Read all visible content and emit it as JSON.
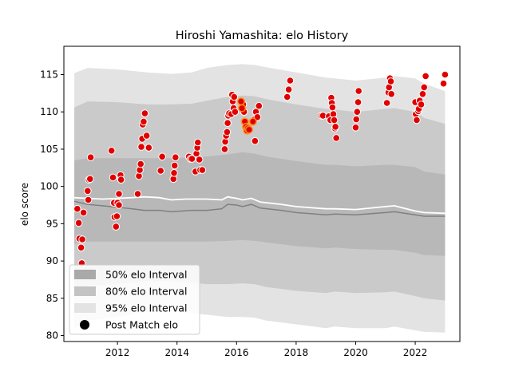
{
  "chart_data": {
    "type": "scatter",
    "title": "Hiroshi Yamashita: elo History",
    "xlabel": "",
    "ylabel": "elo score",
    "xlim": [
      2010.2,
      2023.5
    ],
    "ylim": [
      79.2,
      118.8
    ],
    "x_ticks": [
      2012,
      2014,
      2016,
      2018,
      2020,
      2022
    ],
    "y_ticks": [
      80,
      85,
      90,
      95,
      100,
      105,
      110,
      115
    ],
    "legend_position": "lower-left",
    "legend": [
      {
        "label": "50% elo Interval",
        "color": "#a9a9a9"
      },
      {
        "label": "80% elo Interval",
        "color": "#c3c3c3"
      },
      {
        "label": "95% elo Interval",
        "color": "#e3e3e3"
      },
      {
        "label": "Post Match elo",
        "color": "#000000"
      }
    ],
    "colors": {
      "band95": "#e3e3e3",
      "band80": "#cacaca",
      "band50": "#b8b8b8",
      "median_line": "#808080",
      "mean_line": "#ffffff",
      "point_fill": "#e00000",
      "point_highlight": "#ff8c1a",
      "point_edge": "#ffffff"
    },
    "band_x": [
      2010.55,
      2011.0,
      2012.0,
      2013.0,
      2013.8,
      2014.5,
      2015.0,
      2015.7,
      2016.2,
      2016.6,
      2017.0,
      2018.0,
      2019.0,
      2019.3,
      2020.0,
      2021.0,
      2021.3,
      2022.0,
      2022.3,
      2023.0
    ],
    "band95_upper": [
      115.2,
      115.9,
      115.7,
      115.3,
      115.1,
      115.3,
      115.9,
      116.3,
      116.4,
      116.3,
      116.0,
      115.3,
      114.6,
      114.5,
      114.2,
      114.6,
      114.8,
      114.5,
      113.8,
      112.8
    ],
    "band95_lower": [
      81.0,
      82.0,
      82.5,
      83.2,
      83.3,
      83.0,
      82.8,
      82.5,
      82.5,
      82.4,
      82.0,
      81.5,
      81.0,
      81.2,
      81.0,
      81.0,
      81.2,
      80.7,
      80.5,
      80.4
    ],
    "band80_upper": [
      110.6,
      111.4,
      111.3,
      111.0,
      111.0,
      111.1,
      111.5,
      112.0,
      112.2,
      112.1,
      111.7,
      111.0,
      110.4,
      110.3,
      110.0,
      110.4,
      110.5,
      110.0,
      109.2,
      108.4
    ],
    "band80_lower": [
      86.0,
      86.7,
      86.9,
      87.3,
      87.3,
      87.1,
      86.9,
      86.9,
      87.0,
      86.9,
      86.5,
      86.0,
      85.7,
      85.9,
      85.7,
      85.8,
      85.9,
      85.3,
      85.0,
      84.7
    ],
    "band50_upper": [
      103.5,
      103.8,
      103.8,
      103.8,
      103.8,
      103.9,
      104.0,
      104.3,
      104.6,
      104.4,
      104.0,
      103.4,
      102.9,
      102.9,
      102.7,
      102.9,
      102.9,
      102.6,
      102.0,
      101.6
    ],
    "band50_lower": [
      92.3,
      92.6,
      92.6,
      92.6,
      92.6,
      92.6,
      92.6,
      92.7,
      92.8,
      92.7,
      92.5,
      92.0,
      91.7,
      91.8,
      91.6,
      91.5,
      91.5,
      91.1,
      90.8,
      90.7
    ],
    "median_line": [
      [
        2010.55,
        98.0
      ],
      [
        2011.0,
        97.6
      ],
      [
        2011.5,
        97.4
      ],
      [
        2012.0,
        97.2
      ],
      [
        2012.5,
        97.0
      ],
      [
        2012.9,
        96.8
      ],
      [
        2013.4,
        96.8
      ],
      [
        2013.8,
        96.6
      ],
      [
        2014.5,
        96.8
      ],
      [
        2015.0,
        96.8
      ],
      [
        2015.5,
        97.0
      ],
      [
        2015.7,
        97.6
      ],
      [
        2016.0,
        97.5
      ],
      [
        2016.2,
        97.3
      ],
      [
        2016.5,
        97.6
      ],
      [
        2016.8,
        97.1
      ],
      [
        2017.5,
        96.8
      ],
      [
        2018.0,
        96.5
      ],
      [
        2019.0,
        96.2
      ],
      [
        2019.3,
        96.3
      ],
      [
        2020.0,
        96.2
      ],
      [
        2021.0,
        96.5
      ],
      [
        2021.3,
        96.6
      ],
      [
        2022.0,
        96.2
      ],
      [
        2022.3,
        96.0
      ],
      [
        2023.0,
        96.0
      ]
    ],
    "mean_line": [
      [
        2010.55,
        98.5
      ],
      [
        2011.0,
        98.4
      ],
      [
        2011.5,
        98.3
      ],
      [
        2012.0,
        98.4
      ],
      [
        2012.5,
        98.5
      ],
      [
        2012.9,
        98.6
      ],
      [
        2013.4,
        98.5
      ],
      [
        2013.8,
        98.2
      ],
      [
        2014.3,
        98.3
      ],
      [
        2015.0,
        98.3
      ],
      [
        2015.5,
        98.2
      ],
      [
        2015.7,
        98.6
      ],
      [
        2016.0,
        98.4
      ],
      [
        2016.2,
        98.2
      ],
      [
        2016.5,
        98.4
      ],
      [
        2016.8,
        97.9
      ],
      [
        2017.5,
        97.6
      ],
      [
        2018.0,
        97.3
      ],
      [
        2019.0,
        97.0
      ],
      [
        2019.3,
        97.0
      ],
      [
        2020.0,
        96.9
      ],
      [
        2021.0,
        97.3
      ],
      [
        2021.3,
        97.4
      ],
      [
        2022.0,
        96.7
      ],
      [
        2022.3,
        96.5
      ],
      [
        2023.0,
        96.4
      ]
    ],
    "points": [
      [
        2010.65,
        97.0
      ],
      [
        2010.7,
        95.1
      ],
      [
        2010.72,
        93.0
      ],
      [
        2010.78,
        91.8
      ],
      [
        2010.8,
        89.7
      ],
      [
        2010.82,
        92.9
      ],
      [
        2010.86,
        96.5
      ],
      [
        2011.0,
        99.4
      ],
      [
        2011.02,
        98.2
      ],
      [
        2011.04,
        100.9
      ],
      [
        2011.08,
        101.0
      ],
      [
        2011.1,
        103.9
      ],
      [
        2011.8,
        104.8
      ],
      [
        2011.85,
        101.2
      ],
      [
        2011.88,
        97.8
      ],
      [
        2011.9,
        95.9
      ],
      [
        2011.95,
        94.6
      ],
      [
        2011.98,
        96.0
      ],
      [
        2012.0,
        97.8
      ],
      [
        2012.05,
        99.0
      ],
      [
        2012.1,
        101.5
      ],
      [
        2012.12,
        100.9
      ],
      [
        2012.05,
        97.5
      ],
      [
        2012.68,
        99.0
      ],
      [
        2012.72,
        101.4
      ],
      [
        2012.75,
        102.2
      ],
      [
        2012.78,
        103.0
      ],
      [
        2012.8,
        105.3
      ],
      [
        2012.83,
        106.4
      ],
      [
        2012.85,
        108.3
      ],
      [
        2012.88,
        108.7
      ],
      [
        2012.92,
        109.8
      ],
      [
        2012.98,
        106.8
      ],
      [
        2013.05,
        105.2
      ],
      [
        2013.45,
        102.1
      ],
      [
        2013.5,
        104.0
      ],
      [
        2013.88,
        101.0
      ],
      [
        2013.9,
        101.8
      ],
      [
        2013.92,
        102.8
      ],
      [
        2013.95,
        103.9
      ],
      [
        2014.4,
        104.0
      ],
      [
        2014.45,
        103.7
      ],
      [
        2014.5,
        103.7
      ],
      [
        2014.62,
        102.0
      ],
      [
        2014.65,
        104.4
      ],
      [
        2014.68,
        105.2
      ],
      [
        2014.7,
        105.9
      ],
      [
        2014.75,
        103.6
      ],
      [
        2014.78,
        102.2
      ],
      [
        2014.85,
        102.2
      ],
      [
        2015.6,
        105.0
      ],
      [
        2015.62,
        106.0
      ],
      [
        2015.65,
        106.8
      ],
      [
        2015.68,
        107.3
      ],
      [
        2015.7,
        108.5
      ],
      [
        2015.72,
        109.5
      ],
      [
        2015.75,
        109.8
      ],
      [
        2015.82,
        109.7
      ],
      [
        2015.85,
        112.3
      ],
      [
        2015.87,
        111.4
      ],
      [
        2015.9,
        110.5
      ],
      [
        2015.92,
        112.0
      ],
      [
        2015.95,
        110.0
      ],
      [
        2016.15,
        111.4
      ],
      [
        2016.18,
        110.5
      ],
      [
        2016.22,
        111.0
      ],
      [
        2016.25,
        110.0
      ],
      [
        2016.28,
        108.7
      ],
      [
        2016.32,
        108.0
      ],
      [
        2016.35,
        107.5
      ],
      [
        2016.38,
        107.8
      ],
      [
        2016.42,
        107.6
      ],
      [
        2016.55,
        108.7
      ],
      [
        2016.6,
        109.0
      ],
      [
        2016.62,
        106.1
      ],
      [
        2016.65,
        110.0
      ],
      [
        2016.7,
        109.3
      ],
      [
        2016.75,
        110.8
      ],
      [
        2017.7,
        112.0
      ],
      [
        2017.75,
        113.0
      ],
      [
        2017.8,
        114.2
      ],
      [
        2018.85,
        109.5
      ],
      [
        2018.9,
        109.5
      ],
      [
        2019.1,
        109.4
      ],
      [
        2019.15,
        108.9
      ],
      [
        2019.18,
        111.9
      ],
      [
        2019.2,
        111.2
      ],
      [
        2019.22,
        110.6
      ],
      [
        2019.25,
        109.7
      ],
      [
        2019.28,
        108.9
      ],
      [
        2019.3,
        107.8
      ],
      [
        2019.32,
        108.0
      ],
      [
        2019.35,
        106.5
      ],
      [
        2020.0,
        107.9
      ],
      [
        2020.02,
        109.0
      ],
      [
        2020.05,
        110.0
      ],
      [
        2020.08,
        111.3
      ],
      [
        2020.1,
        112.8
      ],
      [
        2021.05,
        111.2
      ],
      [
        2021.1,
        112.6
      ],
      [
        2021.12,
        113.3
      ],
      [
        2021.15,
        114.5
      ],
      [
        2021.18,
        114.1
      ],
      [
        2021.2,
        112.4
      ],
      [
        2022.0,
        111.3
      ],
      [
        2022.02,
        109.7
      ],
      [
        2022.05,
        108.9
      ],
      [
        2022.1,
        110.1
      ],
      [
        2022.12,
        110.4
      ],
      [
        2022.15,
        111.5
      ],
      [
        2022.2,
        111.0
      ],
      [
        2022.25,
        112.4
      ],
      [
        2022.3,
        113.3
      ],
      [
        2022.35,
        114.8
      ],
      [
        2022.95,
        113.8
      ],
      [
        2023.0,
        115.0
      ]
    ],
    "highlight_points": [
      [
        2016.15,
        111.4
      ],
      [
        2016.18,
        110.5
      ],
      [
        2016.28,
        108.7
      ],
      [
        2016.32,
        108.0
      ],
      [
        2016.35,
        107.5
      ],
      [
        2016.38,
        107.8
      ],
      [
        2016.42,
        107.6
      ],
      [
        2016.55,
        108.7
      ]
    ]
  }
}
